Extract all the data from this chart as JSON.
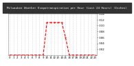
{
  "hours": [
    0,
    1,
    2,
    3,
    4,
    5,
    6,
    7,
    8,
    9,
    10,
    11,
    12,
    13,
    14,
    15,
    16,
    17,
    18,
    19,
    20,
    21,
    22,
    23
  ],
  "values": [
    0,
    0,
    0,
    0,
    0,
    0,
    0,
    0,
    0,
    0,
    0.011,
    0.011,
    0.011,
    0.011,
    0.011,
    0.006,
    0,
    0,
    0,
    0,
    0,
    0,
    0,
    0
  ],
  "line_color": "#ff0000",
  "line_style": "--",
  "line_width": 0.8,
  "title": "Milwaukee Weather Evapotranspiration per Hour (Last 24 Hours) (Inches)",
  "title_fontsize": 3.0,
  "title_color": "#ffffff",
  "title_bg": "#333333",
  "bg_color": "#ffffff",
  "plot_bg": "#ffffff",
  "grid_color": "#bbbbbb",
  "grid_style": ":",
  "tick_fontsize": 2.8,
  "ylim": [
    0,
    0.014
  ],
  "yticks": [
    0.002,
    0.004,
    0.006,
    0.008,
    0.01,
    0.012,
    0.014
  ],
  "ytick_labels": [
    ".002",
    ".004",
    ".006",
    ".008",
    ".010",
    ".012",
    ".014"
  ],
  "xlim": [
    -0.5,
    23.5
  ],
  "xticks": [
    0,
    1,
    2,
    3,
    4,
    5,
    6,
    7,
    8,
    9,
    10,
    11,
    12,
    13,
    14,
    15,
    16,
    17,
    18,
    19,
    20,
    21,
    22,
    23
  ],
  "marker": ".",
  "marker_size": 1.0
}
